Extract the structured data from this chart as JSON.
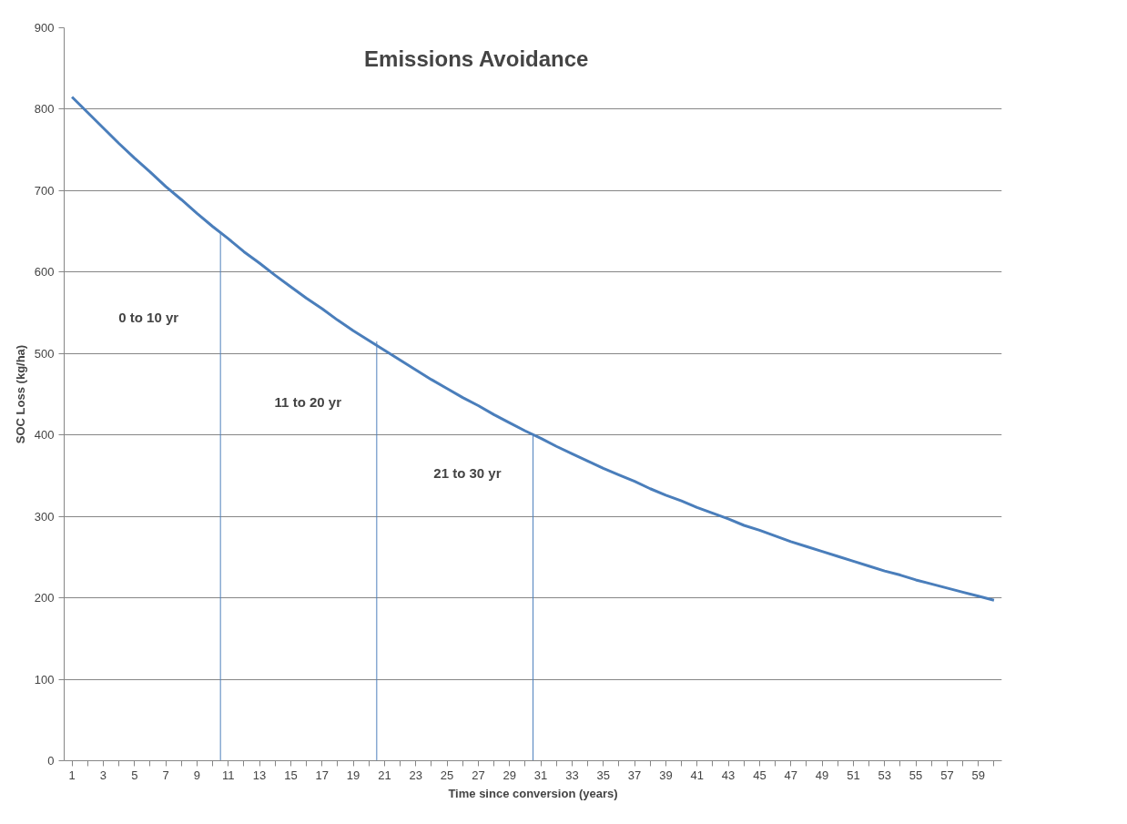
{
  "chart_data": {
    "type": "line",
    "title": "Emissions Avoidance",
    "xlabel": "Time since conversion (years)",
    "ylabel": "SOC Loss (kg/ha)",
    "x": [
      1,
      2,
      3,
      4,
      5,
      6,
      7,
      8,
      9,
      10,
      11,
      12,
      13,
      14,
      15,
      16,
      17,
      18,
      19,
      20,
      21,
      22,
      23,
      24,
      25,
      26,
      27,
      28,
      29,
      30,
      31,
      32,
      33,
      34,
      35,
      36,
      37,
      38,
      39,
      40,
      41,
      42,
      43,
      44,
      45,
      46,
      47,
      48,
      49,
      50,
      51,
      52,
      53,
      54,
      55,
      56,
      57,
      58,
      59,
      60
    ],
    "series": [
      {
        "color": "#4a7ebb",
        "values": [
          815,
          796,
          777,
          758,
          740,
          723,
          705,
          689,
          672,
          656,
          641,
          625,
          611,
          596,
          582,
          568,
          555,
          541,
          528,
          516,
          504,
          492,
          480,
          468,
          457,
          446,
          436,
          425,
          415,
          405,
          396,
          386,
          377,
          368,
          359,
          351,
          343,
          334,
          326,
          319,
          311,
          304,
          297,
          289,
          283,
          276,
          269,
          263,
          257,
          251,
          245,
          239,
          233,
          228,
          222,
          217,
          212,
          207,
          202,
          197
        ]
      },
      {
        "color": "#4f81bd",
        "x": [
          10.5,
          10.5
        ],
        "values": [
          0,
          650
        ]
      },
      {
        "color": "#4f81bd",
        "x": [
          20.5,
          20.5
        ],
        "values": [
          0,
          515
        ]
      },
      {
        "color": "#4f81bd",
        "x": [
          30.5,
          30.5
        ],
        "values": [
          0,
          400
        ]
      }
    ],
    "annotations": [
      "0 to 10 yr",
      "11 to 20 yr",
      "21 to 30 yr"
    ],
    "xlim": [
      0.5,
      60.5
    ],
    "xticks": [
      {
        "value": 1,
        "label": "1"
      },
      {
        "value": 2,
        "label": null
      },
      {
        "value": 3,
        "label": "3"
      },
      {
        "value": 4,
        "label": null
      },
      {
        "value": 5,
        "label": "5"
      },
      {
        "value": 6,
        "label": null
      },
      {
        "value": 7,
        "label": "7"
      },
      {
        "value": 8,
        "label": null
      },
      {
        "value": 9,
        "label": "9"
      },
      {
        "value": 10,
        "label": null
      },
      {
        "value": 11,
        "label": "11"
      },
      {
        "value": 12,
        "label": null
      },
      {
        "value": 13,
        "label": "13"
      },
      {
        "value": 14,
        "label": null
      },
      {
        "value": 15,
        "label": "15"
      },
      {
        "value": 16,
        "label": null
      },
      {
        "value": 17,
        "label": "17"
      },
      {
        "value": 18,
        "label": null
      },
      {
        "value": 19,
        "label": "19"
      },
      {
        "value": 20,
        "label": null
      },
      {
        "value": 21,
        "label": "21"
      },
      {
        "value": 22,
        "label": null
      },
      {
        "value": 23,
        "label": "23"
      },
      {
        "value": 24,
        "label": null
      },
      {
        "value": 25,
        "label": "25"
      },
      {
        "value": 26,
        "label": null
      },
      {
        "value": 27,
        "label": "27"
      },
      {
        "value": 28,
        "label": null
      },
      {
        "value": 29,
        "label": "29"
      },
      {
        "value": 30,
        "label": null
      },
      {
        "value": 31,
        "label": "31"
      },
      {
        "value": 32,
        "label": null
      },
      {
        "value": 33,
        "label": "33"
      },
      {
        "value": 34,
        "label": null
      },
      {
        "value": 35,
        "label": "35"
      },
      {
        "value": 36,
        "label": null
      },
      {
        "value": 37,
        "label": "37"
      },
      {
        "value": 38,
        "label": null
      },
      {
        "value": 39,
        "label": "39"
      },
      {
        "value": 40,
        "label": null
      },
      {
        "value": 41,
        "label": "41"
      },
      {
        "value": 42,
        "label": null
      },
      {
        "value": 43,
        "label": "43"
      },
      {
        "value": 44,
        "label": null
      },
      {
        "value": 45,
        "label": "45"
      },
      {
        "value": 46,
        "label": null
      },
      {
        "value": 47,
        "label": "47"
      },
      {
        "value": 48,
        "label": null
      },
      {
        "value": 49,
        "label": "49"
      },
      {
        "value": 50,
        "label": null
      },
      {
        "value": 51,
        "label": "51"
      },
      {
        "value": 52,
        "label": null
      },
      {
        "value": 53,
        "label": "53"
      },
      {
        "value": 54,
        "label": null
      },
      {
        "value": 55,
        "label": "55"
      },
      {
        "value": 56,
        "label": null
      },
      {
        "value": 57,
        "label": "57"
      },
      {
        "value": 58,
        "label": null
      },
      {
        "value": 59,
        "label": "59"
      },
      {
        "value": 60,
        "label": null
      }
    ],
    "ylim": [
      0,
      900
    ],
    "yticks": [
      0,
      100,
      200,
      300,
      400,
      500,
      600,
      700,
      800,
      900
    ],
    "grid": "y",
    "marker": "none",
    "line_style": "solid"
  }
}
